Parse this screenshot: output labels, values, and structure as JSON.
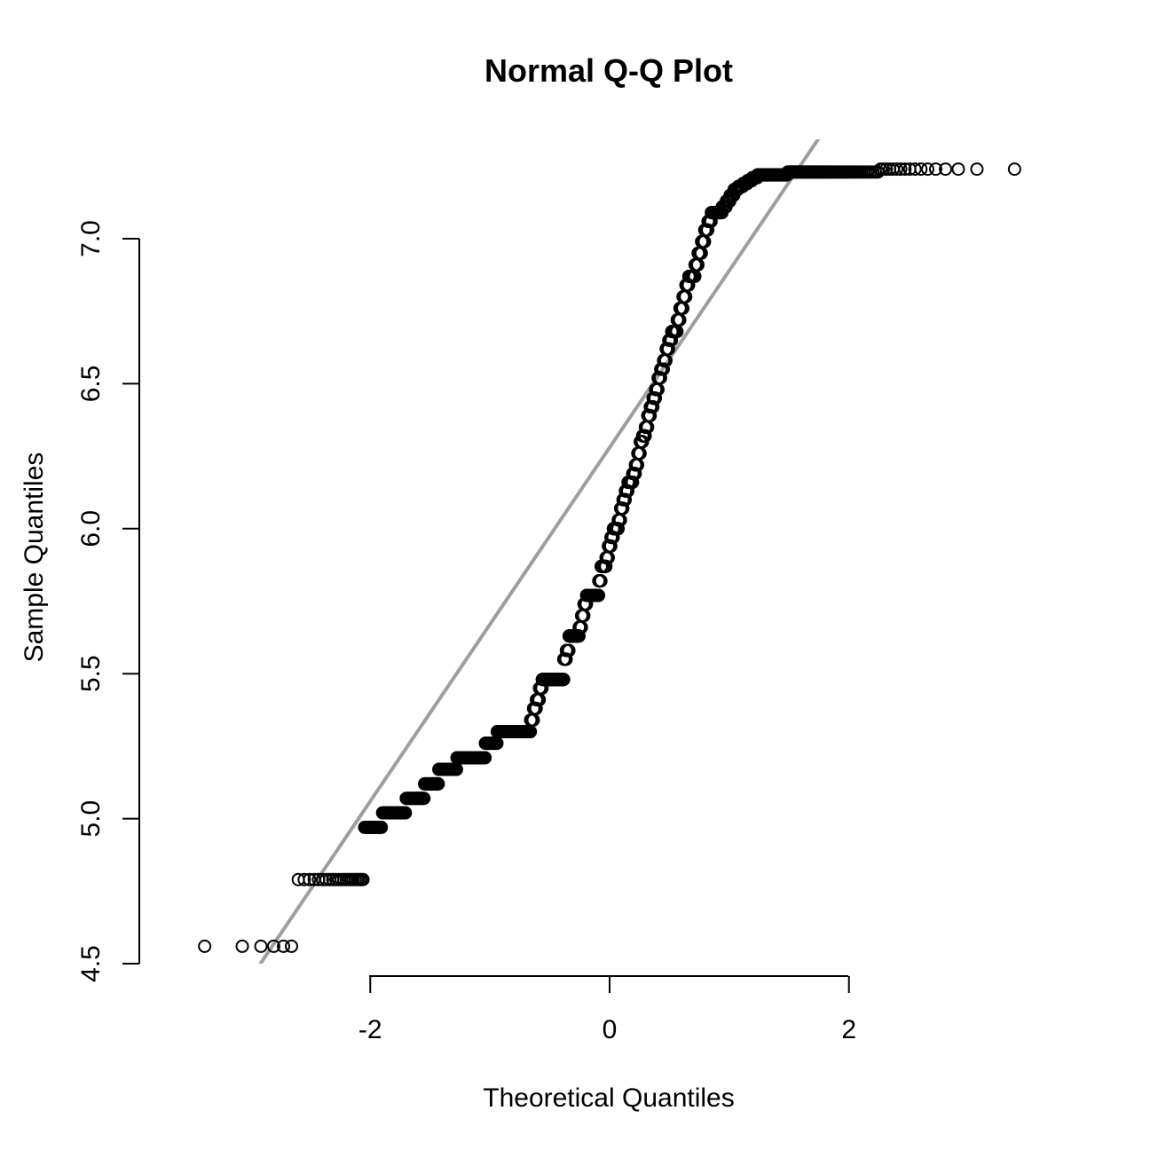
{
  "chart_data": {
    "type": "scatter",
    "title": "Normal Q-Q Plot",
    "xlabel": "Theoretical Quantiles",
    "ylabel": "Sample Quantiles",
    "xlim": [
      -3.93,
      3.93
    ],
    "ylim": [
      4.5,
      7.25
    ],
    "x_ticks": [
      -2,
      0,
      2
    ],
    "x_tick_labels": [
      "-2",
      "0",
      "2"
    ],
    "y_ticks": [
      4.5,
      5.0,
      5.5,
      6.0,
      6.5,
      7.0
    ],
    "y_tick_labels": [
      "4.5",
      "5.0",
      "5.5",
      "6.0",
      "6.5",
      "7.0"
    ],
    "grid": false,
    "marker": "open-circle",
    "reference_line": {
      "slope": 0.61,
      "intercept": 6.28,
      "color": "#9e9e9e"
    },
    "sample_values": [
      4.56,
      4.79,
      4.79,
      4.97,
      5.02,
      5.02,
      5.07,
      5.07,
      5.12,
      5.12,
      5.17,
      5.17,
      5.17,
      5.21,
      5.21,
      5.21,
      5.21,
      5.21,
      5.21,
      5.26,
      5.26,
      5.26,
      5.3,
      5.3,
      5.3,
      5.3,
      5.3,
      5.3,
      5.3,
      5.3,
      5.3,
      5.3,
      5.34,
      5.38,
      5.41,
      5.45,
      5.48,
      5.48,
      5.48,
      5.48,
      5.48,
      5.48,
      5.48,
      5.48,
      5.55,
      5.58,
      5.63,
      5.63,
      5.63,
      5.63,
      5.66,
      5.7,
      5.74,
      5.77,
      5.77,
      5.77,
      5.77,
      5.77,
      5.82,
      5.87,
      5.87,
      5.9,
      5.94,
      5.97,
      6.0,
      6.0,
      6.03,
      6.07,
      6.1,
      6.13,
      6.16,
      6.16,
      6.19,
      6.22,
      6.26,
      6.3,
      6.32,
      6.35,
      6.39,
      6.42,
      6.45,
      6.48,
      6.52,
      6.55,
      6.58,
      6.62,
      6.65,
      6.68,
      6.68,
      6.72,
      6.76,
      6.8,
      6.84,
      6.87,
      6.87,
      6.91,
      6.95,
      6.99,
      7.03,
      7.06,
      7.09,
      7.09,
      7.09,
      7.11,
      7.13,
      7.15,
      7.17,
      7.18,
      7.19,
      7.2,
      7.21,
      7.22,
      7.22,
      7.22,
      7.22,
      7.22,
      7.23,
      7.23,
      7.23,
      7.23,
      7.23,
      7.23,
      7.23,
      7.24,
      7.24
    ]
  }
}
